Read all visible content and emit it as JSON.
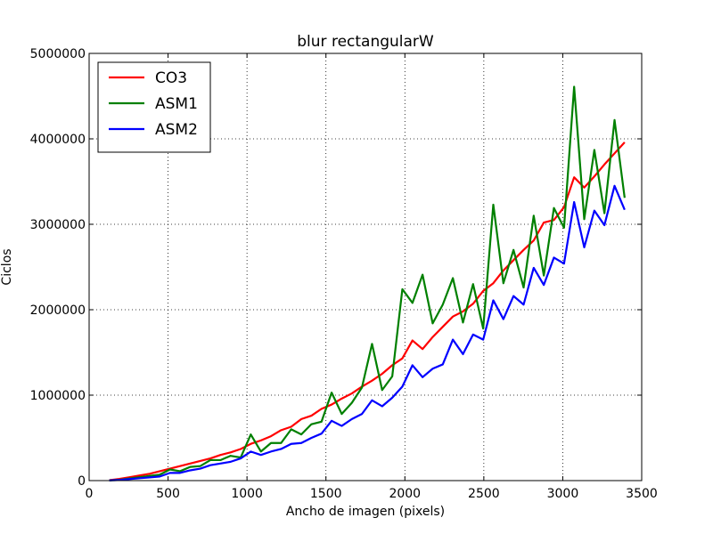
{
  "chart_data": {
    "type": "line",
    "title": "blur rectangularW",
    "xlabel": "Ancho de imagen (pixels)",
    "ylabel": "Ciclos",
    "xlim": [
      0,
      3500
    ],
    "ylim": [
      0,
      5000000
    ],
    "xticks": [
      "0",
      "500",
      "1000",
      "1500",
      "2000",
      "2500",
      "3000",
      "3500"
    ],
    "yticks": [
      "0",
      "1000000",
      "2000000",
      "3000000",
      "4000000",
      "5000000"
    ],
    "grid": true,
    "legend_position": "top-left",
    "x": [
      128,
      192,
      256,
      320,
      384,
      448,
      512,
      576,
      640,
      704,
      768,
      832,
      896,
      960,
      1024,
      1088,
      1152,
      1216,
      1280,
      1344,
      1408,
      1472,
      1536,
      1600,
      1664,
      1728,
      1792,
      1856,
      1920,
      1984,
      2048,
      2112,
      2176,
      2240,
      2304,
      2368,
      2432,
      2496,
      2560,
      2624,
      2688,
      2752,
      2816,
      2880,
      2944,
      3008,
      3072,
      3136,
      3200,
      3264,
      3328,
      3392
    ],
    "series": [
      {
        "name": "CO3",
        "color": "#ff0000",
        "values": [
          5000,
          20000,
          40000,
          60000,
          80000,
          110000,
          140000,
          170000,
          200000,
          230000,
          260000,
          300000,
          330000,
          370000,
          430000,
          470000,
          520000,
          590000,
          630000,
          720000,
          760000,
          840000,
          890000,
          960000,
          1020000,
          1100000,
          1170000,
          1250000,
          1350000,
          1430000,
          1640000,
          1540000,
          1680000,
          1800000,
          1920000,
          1980000,
          2070000,
          2220000,
          2310000,
          2460000,
          2580000,
          2700000,
          2810000,
          3020000,
          3050000,
          3200000,
          3550000,
          3430000,
          3560000,
          3700000,
          3830000,
          3960000
        ]
      },
      {
        "name": "ASM1",
        "color": "#008000",
        "values": [
          2000,
          10000,
          25000,
          40000,
          55000,
          70000,
          130000,
          110000,
          160000,
          170000,
          240000,
          240000,
          290000,
          270000,
          540000,
          340000,
          440000,
          440000,
          600000,
          540000,
          660000,
          690000,
          1030000,
          780000,
          910000,
          1090000,
          1600000,
          1060000,
          1220000,
          2240000,
          2080000,
          2410000,
          1840000,
          2060000,
          2370000,
          1850000,
          2300000,
          1780000,
          3230000,
          2310000,
          2700000,
          2260000,
          3100000,
          2400000,
          3190000,
          2960000,
          4610000,
          3060000,
          3870000,
          3130000,
          4220000,
          3310000
        ]
      },
      {
        "name": "ASM2",
        "color": "#0000ff",
        "values": [
          2000,
          8000,
          18000,
          28000,
          38000,
          48000,
          90000,
          90000,
          120000,
          140000,
          180000,
          200000,
          220000,
          260000,
          340000,
          300000,
          340000,
          370000,
          430000,
          440000,
          500000,
          550000,
          700000,
          640000,
          720000,
          780000,
          940000,
          870000,
          970000,
          1100000,
          1350000,
          1210000,
          1310000,
          1360000,
          1650000,
          1480000,
          1710000,
          1650000,
          2110000,
          1890000,
          2160000,
          2060000,
          2490000,
          2290000,
          2610000,
          2540000,
          3260000,
          2730000,
          3160000,
          2990000,
          3450000,
          3170000
        ]
      }
    ]
  }
}
